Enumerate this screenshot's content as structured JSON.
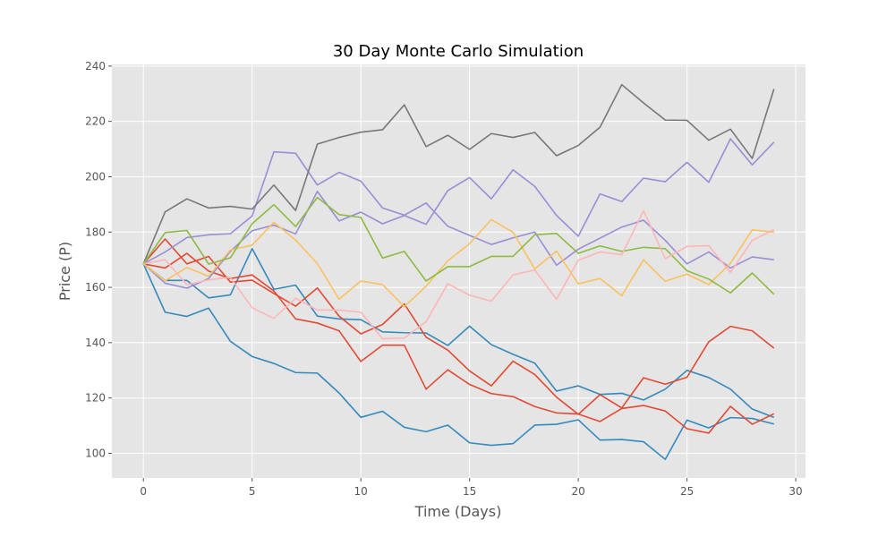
{
  "chart_data": {
    "type": "line",
    "title": "30 Day Monte Carlo Simulation",
    "xlabel": "Time (Days)",
    "ylabel": "Price (P)",
    "xlim": [
      -1.45,
      30.45
    ],
    "ylim": [
      91.1,
      240.6
    ],
    "xticks": [
      0,
      5,
      10,
      15,
      20,
      25,
      30
    ],
    "yticks": [
      100,
      120,
      140,
      160,
      180,
      200,
      220,
      240
    ],
    "grid": true,
    "plot_background": "#e5e5e5",
    "grid_color": "#ffffff",
    "x": [
      0,
      1,
      2,
      3,
      4,
      5,
      6,
      7,
      8,
      9,
      10,
      11,
      12,
      13,
      14,
      15,
      16,
      17,
      18,
      19,
      20,
      21,
      22,
      23,
      24,
      25,
      26,
      27,
      28,
      29
    ],
    "series": [
      {
        "color": "#348abd",
        "values": [
          168.5,
          151,
          149.5,
          152.5,
          140.5,
          135,
          132.5,
          129.2,
          129,
          121.8,
          113,
          115.2,
          109.4,
          107.8,
          110.2,
          103.8,
          102.9,
          103.5,
          110.2,
          110.5,
          112.1,
          104.8,
          105,
          104.2,
          97.8,
          112,
          109.2,
          112.9,
          112.6,
          110.6
        ]
      },
      {
        "color": "#348abd",
        "values": [
          168.5,
          162.5,
          162.5,
          156.2,
          157.3,
          174,
          159.3,
          160.8,
          149.6,
          148.6,
          148.3,
          143.9,
          143.6,
          143.5,
          139,
          146,
          139.3,
          135.8,
          132.6,
          122.5,
          124.4,
          121.3,
          121.7,
          119.3,
          123.2,
          130,
          127.4,
          123.2,
          116,
          113
        ]
      },
      {
        "color": "#e24a33",
        "values": [
          168.5,
          177.5,
          168.5,
          171.2,
          161.9,
          162.6,
          157.8,
          153.2,
          159.8,
          149.6,
          143.2,
          146.6,
          154,
          142,
          137.3,
          129.8,
          124.4,
          133.3,
          128.5,
          120.3,
          114.1,
          121.2,
          116.4,
          127.3,
          125,
          127.5,
          140.3,
          145.9,
          144.3,
          138
        ]
      },
      {
        "color": "#e24a33",
        "values": [
          168.5,
          167,
          172.3,
          165.9,
          163.2,
          164.5,
          158.7,
          148.6,
          147.1,
          144.3,
          133.2,
          139.1,
          139.1,
          123.2,
          130.2,
          124.9,
          121.6,
          120.5,
          116.9,
          114.6,
          114.2,
          111.5,
          116.2,
          117.3,
          115.3,
          108.9,
          107.3,
          117,
          110.5,
          114.3
        ]
      },
      {
        "color": "#988ed5",
        "values": [
          168.5,
          172.8,
          178,
          179,
          179.4,
          185.8,
          209,
          208.5,
          197,
          201.6,
          198.4,
          188.7,
          186.1,
          190.5,
          182.1,
          178.8,
          175.5,
          177.9,
          180,
          168,
          173.8,
          177.8,
          181.8,
          184.3,
          177,
          168.5,
          172.8,
          167,
          171,
          170
        ]
      },
      {
        "color": "#988ed5",
        "values": [
          168.5,
          161.5,
          159.7,
          163.2,
          173,
          180.5,
          182.5,
          179.3,
          194.7,
          184,
          187.2,
          183,
          186,
          182.8,
          195,
          199.7,
          192,
          202.5,
          196.5,
          186,
          178.5,
          193.8,
          191,
          199.5,
          198.2,
          205.2,
          198,
          213.7,
          204.3,
          212.5
        ]
      },
      {
        "color": "#777777",
        "values": [
          168.5,
          187.3,
          192,
          188.7,
          189.3,
          188.3,
          197,
          187.8,
          211.8,
          214.2,
          216.1,
          217,
          226,
          210.9,
          215,
          209.9,
          215.6,
          214.2,
          216,
          207.6,
          211.3,
          217.9,
          233.3,
          226.7,
          220.5,
          220.4,
          213.2,
          217.2,
          206.6,
          231.7
        ]
      },
      {
        "color": "#fbc15e",
        "values": [
          168.5,
          162.4,
          167.2,
          164,
          173.5,
          175.3,
          183.5,
          177.1,
          168.6,
          155.7,
          162.3,
          161,
          153,
          160.4,
          169.6,
          175.8,
          184.5,
          179.9,
          166.7,
          173.1,
          161.3,
          163.2,
          157,
          170,
          162.2,
          164.8,
          161,
          168.7,
          180.8,
          180
        ]
      },
      {
        "color": "#8eba42",
        "values": [
          168.5,
          179.8,
          180.6,
          168.4,
          170.7,
          183,
          189.9,
          182,
          192.5,
          186.3,
          185.3,
          170.6,
          173,
          162.3,
          167.5,
          167.5,
          171.2,
          171.2,
          179,
          179.5,
          172.3,
          175,
          173,
          174.5,
          174,
          166,
          163,
          158,
          165.2,
          157.5
        ]
      },
      {
        "color": "#ffb5b8",
        "values": [
          168.5,
          170,
          161,
          162.7,
          163.6,
          152.6,
          148.8,
          156.1,
          151.8,
          151.8,
          151,
          141.4,
          141.7,
          147.6,
          161.3,
          157.2,
          155,
          164.5,
          166.3,
          155.7,
          169.8,
          172.8,
          171.8,
          187.7,
          170.4,
          174.8,
          175.1,
          165.4,
          177,
          180.9
        ]
      }
    ]
  }
}
